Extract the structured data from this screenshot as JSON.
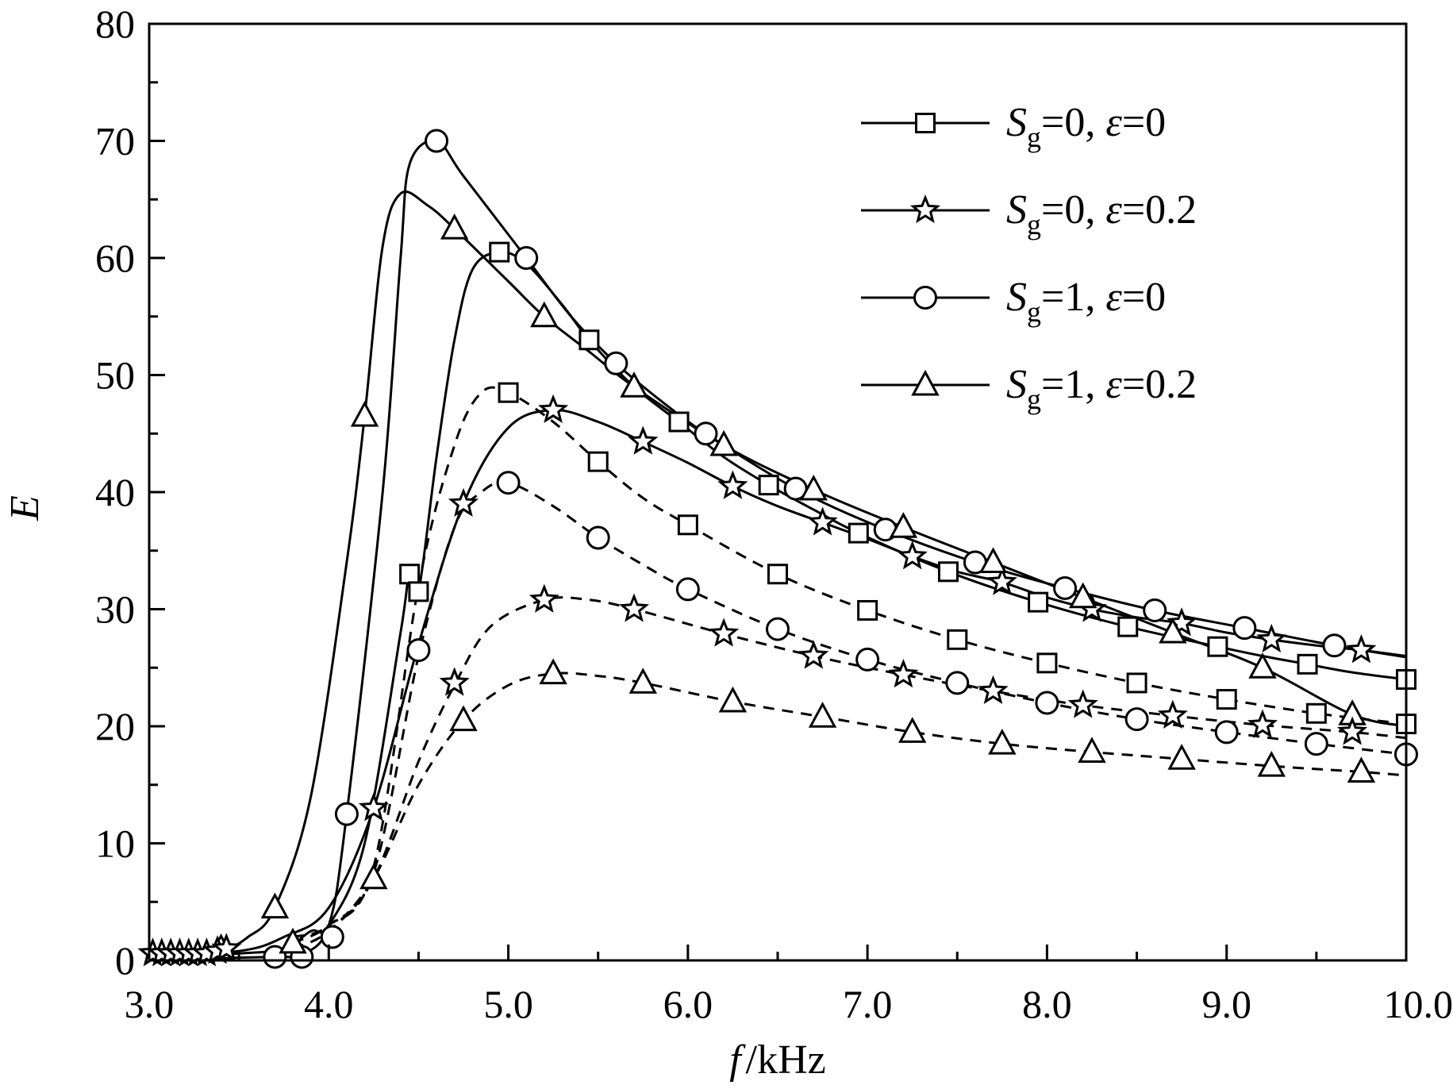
{
  "chart_data": {
    "type": "line",
    "xlabel": {
      "var": "f",
      "unit": "/kHz"
    },
    "ylabel": "E",
    "xlim": [
      3.0,
      10.0
    ],
    "ylim": [
      0,
      80
    ],
    "xticks": [
      "3.0",
      "4.0",
      "5.0",
      "6.0",
      "7.0",
      "8.0",
      "9.0",
      "10.0"
    ],
    "yticks": [
      "0",
      "10",
      "20",
      "30",
      "40",
      "50",
      "60",
      "70",
      "80"
    ],
    "grid": false,
    "legend": {
      "placement": "top-right",
      "entries": [
        {
          "sym": "S",
          "sub": "g",
          "val": "=0, ",
          "eps": "ε",
          "eval": "=0",
          "marker": "square"
        },
        {
          "sym": "S",
          "sub": "g",
          "val": "=0, ",
          "eps": "ε",
          "eval": "=0.2",
          "marker": "star"
        },
        {
          "sym": "S",
          "sub": "g",
          "val": "=1, ",
          "eps": "ε",
          "eval": "=0",
          "marker": "circle"
        },
        {
          "sym": "S",
          "sub": "g",
          "val": "=1, ",
          "eps": "ε",
          "eval": "=0.2",
          "marker": "triangle"
        }
      ]
    },
    "series": [
      {
        "marker": "square",
        "dash": false,
        "points": [
          [
            3.0,
            0.3
          ],
          [
            3.5,
            0.6
          ],
          [
            3.75,
            1.0
          ],
          [
            3.9,
            2.5
          ],
          [
            4.0,
            3.0
          ],
          [
            4.2,
            10.0
          ],
          [
            4.4,
            28.0
          ],
          [
            4.45,
            33.0
          ],
          [
            4.5,
            31.5
          ],
          [
            4.6,
            43.0
          ],
          [
            4.7,
            53.0
          ],
          [
            4.8,
            59.0
          ],
          [
            4.95,
            60.5
          ],
          [
            5.1,
            59.5
          ],
          [
            5.3,
            56.0
          ],
          [
            5.45,
            53.0
          ],
          [
            5.7,
            49.0
          ],
          [
            5.95,
            46.0
          ],
          [
            6.2,
            43.0
          ],
          [
            6.45,
            40.6
          ],
          [
            6.7,
            38.5
          ],
          [
            6.95,
            36.5
          ],
          [
            7.45,
            33.2
          ],
          [
            7.95,
            30.6
          ],
          [
            8.45,
            28.5
          ],
          [
            8.95,
            26.8
          ],
          [
            9.2,
            26.0
          ],
          [
            9.45,
            25.3
          ],
          [
            9.7,
            24.6
          ],
          [
            10.0,
            24.0
          ]
        ],
        "markers": [
          [
            4.45,
            33.0
          ],
          [
            4.5,
            31.5
          ],
          [
            4.95,
            60.5
          ],
          [
            5.45,
            53.0
          ],
          [
            5.95,
            46.0
          ],
          [
            6.45,
            40.6
          ],
          [
            6.95,
            36.5
          ],
          [
            7.45,
            33.2
          ],
          [
            7.95,
            30.6
          ],
          [
            8.45,
            28.5
          ],
          [
            8.95,
            26.8
          ],
          [
            9.45,
            25.3
          ],
          [
            10.0,
            24.0
          ]
        ]
      },
      {
        "marker": "star",
        "dash": false,
        "points": [
          [
            3.0,
            0.5
          ],
          [
            3.5,
            0.8
          ],
          [
            3.75,
            2.0
          ],
          [
            4.0,
            4.5
          ],
          [
            4.25,
            13.0
          ],
          [
            4.5,
            27.0
          ],
          [
            4.75,
            39.0
          ],
          [
            5.0,
            45.5
          ],
          [
            5.25,
            47.0
          ],
          [
            5.5,
            46.0
          ],
          [
            5.75,
            44.3
          ],
          [
            6.0,
            42.5
          ],
          [
            6.25,
            40.5
          ],
          [
            6.5,
            38.8
          ],
          [
            6.75,
            37.4
          ],
          [
            7.0,
            36.0
          ],
          [
            7.25,
            34.5
          ],
          [
            7.5,
            33.2
          ],
          [
            7.75,
            32.3
          ],
          [
            8.0,
            31.0
          ],
          [
            8.25,
            30.0
          ],
          [
            8.5,
            29.3
          ],
          [
            8.75,
            28.8
          ],
          [
            9.0,
            28.0
          ],
          [
            9.25,
            27.4
          ],
          [
            9.5,
            26.9
          ],
          [
            9.75,
            26.5
          ],
          [
            10.0,
            26.0
          ]
        ],
        "markers": [
          [
            4.25,
            13.0
          ],
          [
            4.75,
            39.0
          ],
          [
            5.25,
            47.0
          ],
          [
            5.75,
            44.3
          ],
          [
            6.25,
            40.5
          ],
          [
            6.75,
            37.4
          ],
          [
            7.25,
            34.5
          ],
          [
            7.75,
            32.3
          ],
          [
            8.25,
            30.0
          ],
          [
            8.75,
            28.8
          ],
          [
            9.25,
            27.4
          ],
          [
            9.75,
            26.5
          ]
        ]
      },
      {
        "marker": "circle",
        "dash": false,
        "points": [
          [
            3.0,
            0.1
          ],
          [
            3.7,
            0.3
          ],
          [
            3.85,
            0.5
          ],
          [
            4.0,
            3.0
          ],
          [
            4.1,
            12.5
          ],
          [
            4.3,
            40.0
          ],
          [
            4.4,
            60.0
          ],
          [
            4.45,
            68.0
          ],
          [
            4.6,
            70.0
          ],
          [
            4.75,
            67.0
          ],
          [
            5.1,
            60.0
          ],
          [
            5.35,
            55.0
          ],
          [
            5.6,
            51.0
          ],
          [
            5.85,
            47.8
          ],
          [
            6.1,
            45.0
          ],
          [
            6.6,
            40.3
          ],
          [
            7.1,
            36.8
          ],
          [
            7.6,
            34.0
          ],
          [
            8.1,
            31.8
          ],
          [
            8.6,
            29.9
          ],
          [
            9.1,
            28.4
          ],
          [
            9.6,
            26.9
          ],
          [
            10.0,
            25.9
          ]
        ],
        "markers": [
          [
            3.7,
            0.3
          ],
          [
            3.85,
            0.3
          ],
          [
            4.02,
            2.0
          ],
          [
            4.1,
            12.5
          ],
          [
            4.5,
            26.5
          ],
          [
            4.6,
            70.0
          ],
          [
            5.1,
            60.0
          ],
          [
            5.6,
            51.0
          ],
          [
            6.1,
            45.0
          ],
          [
            6.6,
            40.3
          ],
          [
            7.1,
            36.8
          ],
          [
            7.6,
            34.0
          ],
          [
            8.1,
            31.8
          ],
          [
            8.6,
            29.9
          ],
          [
            9.1,
            28.4
          ],
          [
            9.6,
            26.9
          ]
        ]
      },
      {
        "marker": "triangle",
        "dash": false,
        "points": [
          [
            3.0,
            0.5
          ],
          [
            3.4,
            1.0
          ],
          [
            3.55,
            2.0
          ],
          [
            3.7,
            4.5
          ],
          [
            3.9,
            14.0
          ],
          [
            4.1,
            34.0
          ],
          [
            4.2,
            46.5
          ],
          [
            4.3,
            61.0
          ],
          [
            4.4,
            65.5
          ],
          [
            4.55,
            64.5
          ],
          [
            4.7,
            62.5
          ],
          [
            5.0,
            58.0
          ],
          [
            5.2,
            55.0
          ],
          [
            5.45,
            52.0
          ],
          [
            5.7,
            49.0
          ],
          [
            6.2,
            44.0
          ],
          [
            6.7,
            40.2
          ],
          [
            7.2,
            37.0
          ],
          [
            7.7,
            34.0
          ],
          [
            8.2,
            31.0
          ],
          [
            8.7,
            28.0
          ],
          [
            9.2,
            25.0
          ],
          [
            9.7,
            21.0
          ],
          [
            10.0,
            20.0
          ]
        ],
        "markers": [
          [
            3.4,
            1.0
          ],
          [
            3.7,
            4.5
          ],
          [
            4.2,
            46.5
          ],
          [
            4.7,
            62.5
          ],
          [
            5.2,
            55.0
          ],
          [
            5.7,
            49.0
          ],
          [
            6.2,
            44.0
          ],
          [
            6.7,
            40.2
          ],
          [
            7.2,
            37.0
          ],
          [
            7.7,
            34.0
          ],
          [
            8.2,
            31.0
          ],
          [
            8.7,
            28.0
          ],
          [
            9.2,
            25.0
          ],
          [
            9.7,
            21.0
          ]
        ]
      },
      {
        "marker": "square",
        "dash": true,
        "points": [
          [
            3.8,
            2.0
          ],
          [
            4.0,
            3.0
          ],
          [
            4.25,
            8.0
          ],
          [
            4.5,
            32.0
          ],
          [
            4.7,
            44.0
          ],
          [
            4.85,
            48.5
          ],
          [
            5.0,
            48.5
          ],
          [
            5.25,
            46.0
          ],
          [
            5.5,
            42.6
          ],
          [
            5.75,
            39.5
          ],
          [
            6.0,
            37.2
          ],
          [
            6.5,
            33.0
          ],
          [
            7.0,
            29.9
          ],
          [
            7.5,
            27.4
          ],
          [
            8.0,
            25.4
          ],
          [
            8.5,
            23.7
          ],
          [
            9.0,
            22.3
          ],
          [
            9.5,
            21.1
          ],
          [
            10.0,
            20.2
          ]
        ],
        "markers": [
          [
            5.0,
            48.5
          ],
          [
            5.5,
            42.6
          ],
          [
            6.0,
            37.2
          ],
          [
            6.5,
            33.0
          ],
          [
            7.0,
            29.9
          ],
          [
            7.5,
            27.4
          ],
          [
            8.0,
            25.4
          ],
          [
            8.5,
            23.7
          ],
          [
            9.0,
            22.3
          ],
          [
            9.5,
            21.1
          ],
          [
            10.0,
            20.2
          ]
        ]
      },
      {
        "marker": "circle",
        "dash": true,
        "points": [
          [
            3.8,
            1.5
          ],
          [
            4.0,
            3.0
          ],
          [
            4.25,
            7.5
          ],
          [
            4.5,
            26.0
          ],
          [
            4.7,
            37.0
          ],
          [
            4.85,
            40.0
          ],
          [
            5.0,
            40.8
          ],
          [
            5.25,
            38.8
          ],
          [
            5.5,
            36.1
          ],
          [
            5.75,
            33.8
          ],
          [
            6.0,
            31.7
          ],
          [
            6.5,
            28.3
          ],
          [
            7.0,
            25.7
          ],
          [
            7.5,
            23.7
          ],
          [
            8.0,
            22.0
          ],
          [
            8.5,
            20.6
          ],
          [
            9.0,
            19.5
          ],
          [
            9.5,
            18.5
          ],
          [
            10.0,
            17.6
          ]
        ],
        "markers": [
          [
            5.0,
            40.8
          ],
          [
            5.5,
            36.1
          ],
          [
            6.0,
            31.7
          ],
          [
            6.5,
            28.3
          ],
          [
            7.0,
            25.7
          ],
          [
            7.5,
            23.7
          ],
          [
            8.0,
            22.0
          ],
          [
            8.5,
            20.6
          ],
          [
            9.0,
            19.5
          ],
          [
            9.5,
            18.5
          ],
          [
            10.0,
            17.6
          ]
        ]
      },
      {
        "marker": "star",
        "dash": true,
        "points": [
          [
            3.8,
            1.0
          ],
          [
            4.0,
            2.5
          ],
          [
            4.25,
            7.0
          ],
          [
            4.5,
            17.0
          ],
          [
            4.7,
            23.5
          ],
          [
            4.9,
            28.5
          ],
          [
            5.2,
            30.8
          ],
          [
            5.45,
            30.8
          ],
          [
            5.7,
            30.0
          ],
          [
            6.2,
            27.9
          ],
          [
            6.7,
            26.0
          ],
          [
            7.2,
            24.4
          ],
          [
            7.7,
            23.0
          ],
          [
            8.2,
            21.8
          ],
          [
            8.7,
            20.9
          ],
          [
            9.2,
            20.1
          ],
          [
            9.7,
            19.5
          ],
          [
            10.0,
            19.0
          ]
        ],
        "markers": [
          [
            4.7,
            23.7
          ],
          [
            5.2,
            30.8
          ],
          [
            5.7,
            30.0
          ],
          [
            6.2,
            27.9
          ],
          [
            6.7,
            26.0
          ],
          [
            7.2,
            24.4
          ],
          [
            7.7,
            23.0
          ],
          [
            8.2,
            21.8
          ],
          [
            8.7,
            20.9
          ],
          [
            9.2,
            20.1
          ],
          [
            9.7,
            19.5
          ]
        ]
      },
      {
        "marker": "triangle",
        "dash": true,
        "points": [
          [
            3.8,
            1.0
          ],
          [
            4.0,
            2.5
          ],
          [
            4.25,
            7.0
          ],
          [
            4.5,
            15.0
          ],
          [
            4.75,
            20.5
          ],
          [
            5.0,
            23.5
          ],
          [
            5.25,
            24.5
          ],
          [
            5.5,
            24.3
          ],
          [
            5.75,
            23.7
          ],
          [
            6.25,
            22.1
          ],
          [
            6.75,
            20.8
          ],
          [
            7.25,
            19.5
          ],
          [
            7.75,
            18.5
          ],
          [
            8.25,
            17.8
          ],
          [
            8.75,
            17.2
          ],
          [
            9.25,
            16.6
          ],
          [
            9.75,
            16.1
          ],
          [
            10.0,
            15.8
          ]
        ],
        "markers": [
          [
            3.8,
            1.5
          ],
          [
            4.25,
            7.0
          ],
          [
            4.75,
            20.5
          ],
          [
            5.25,
            24.5
          ],
          [
            5.75,
            23.7
          ],
          [
            6.25,
            22.1
          ],
          [
            6.75,
            20.8
          ],
          [
            7.25,
            19.5
          ],
          [
            7.75,
            18.5
          ],
          [
            8.25,
            17.8
          ],
          [
            8.75,
            17.2
          ],
          [
            9.25,
            16.6
          ],
          [
            9.75,
            16.1
          ]
        ]
      },
      {
        "marker": "star",
        "dash": false,
        "points": [
          [
            3.0,
            0.6
          ],
          [
            3.45,
            0.9
          ]
        ],
        "markers": [
          [
            3.02,
            0.6
          ],
          [
            3.07,
            0.6
          ],
          [
            3.12,
            0.6
          ],
          [
            3.17,
            0.6
          ],
          [
            3.22,
            0.6
          ],
          [
            3.27,
            0.6
          ],
          [
            3.32,
            0.6
          ],
          [
            3.38,
            0.8
          ],
          [
            3.43,
            1.0
          ]
        ]
      }
    ]
  }
}
